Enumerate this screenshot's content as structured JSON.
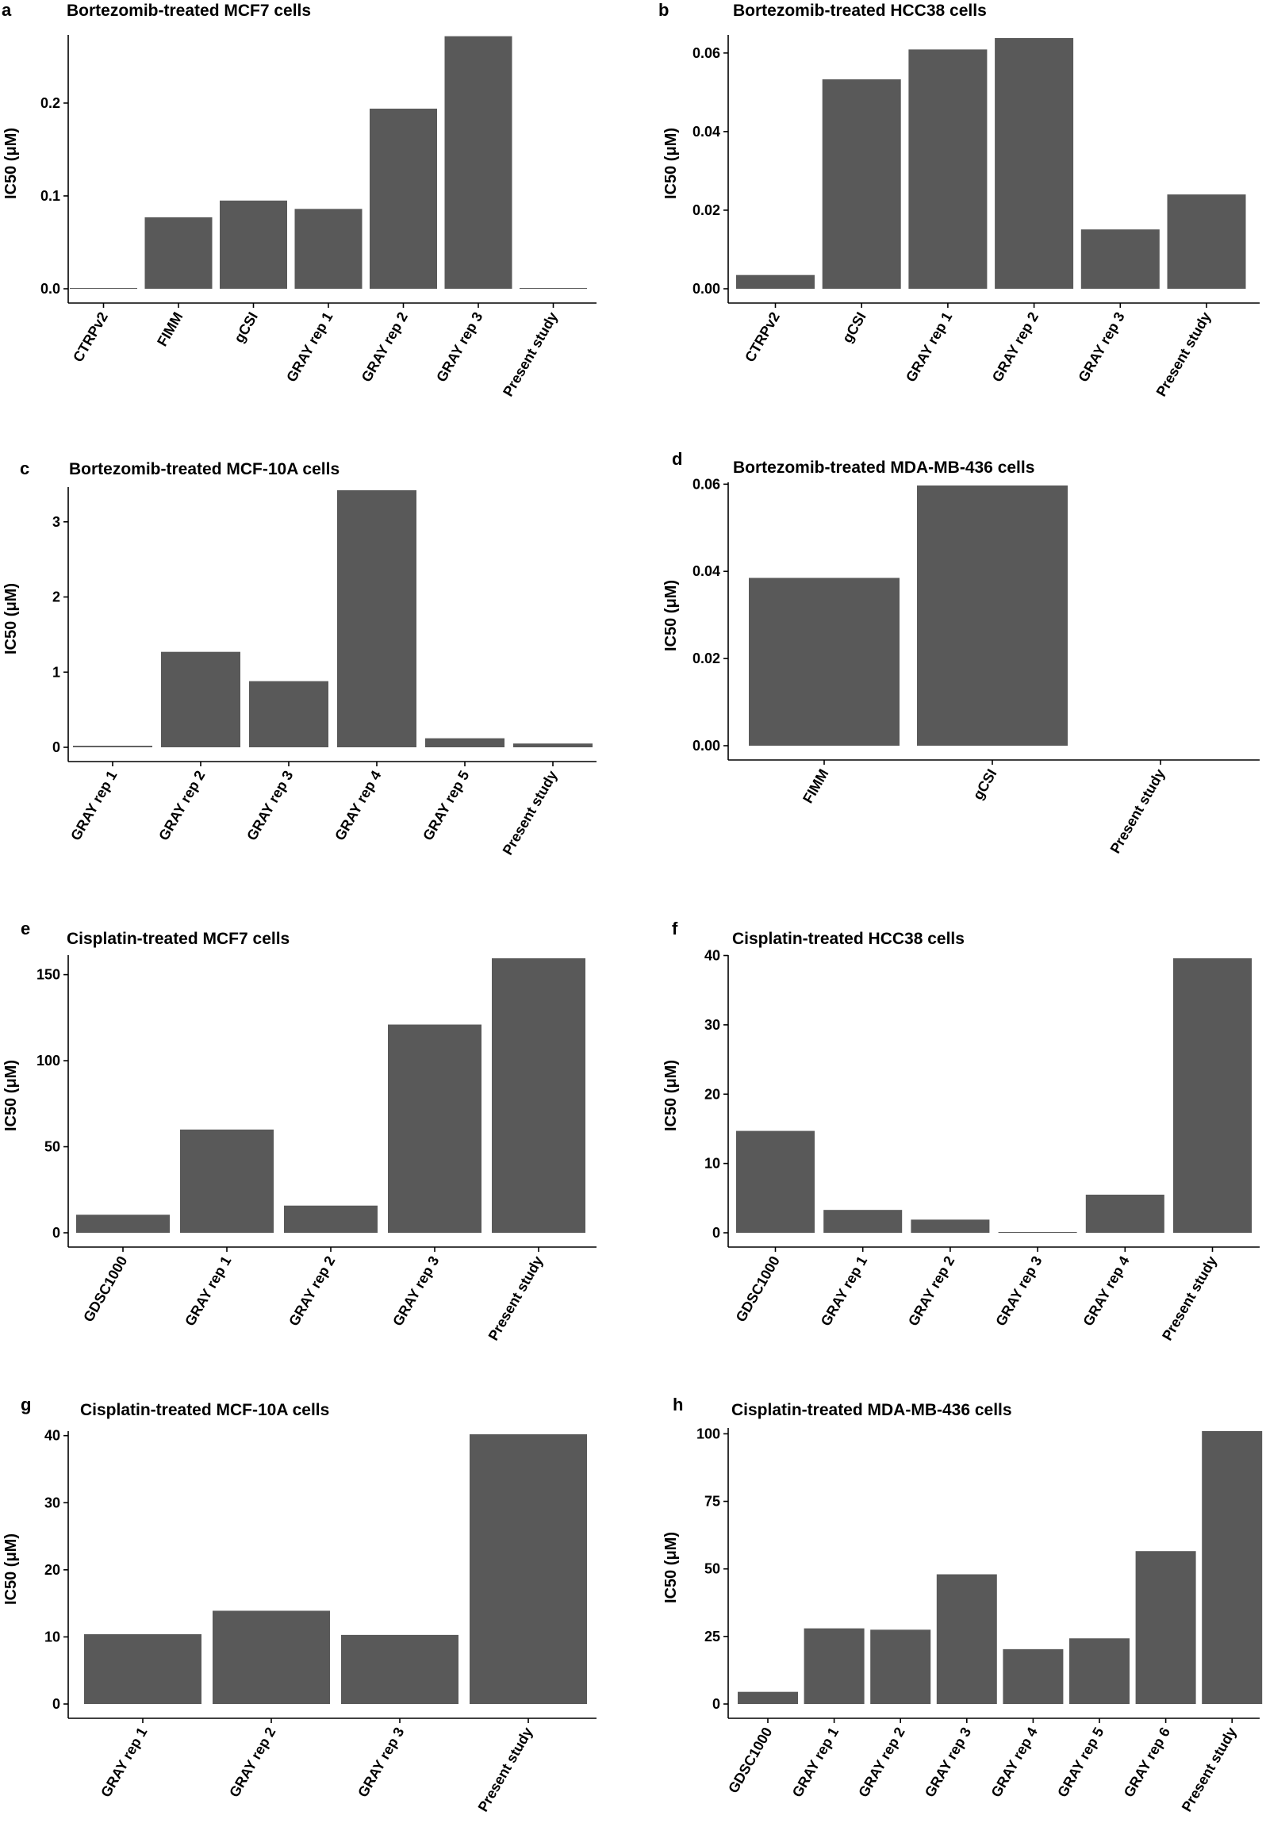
{
  "figure": {
    "ylabel": "IC50 (μM)"
  },
  "chart_data": [
    {
      "letter": "a",
      "type": "bar",
      "title": "Bortezomib-treated MCF7 cells",
      "xlabel": "",
      "ylabel": "IC50 (μM)",
      "categories": [
        "CTRPv2",
        "FIMM",
        "gCSI",
        "GRAY rep 1",
        "GRAY rep 2",
        "GRAY rep 3",
        "Present study"
      ],
      "values": [
        0.0003,
        0.077,
        0.095,
        0.086,
        0.194,
        0.272,
        0.0003
      ],
      "ylim": [
        0,
        0.27
      ],
      "ticks": [
        0.0,
        0.1,
        0.2
      ],
      "tick_labels": [
        "0.0",
        "0.1",
        "0.2"
      ]
    },
    {
      "letter": "b",
      "type": "bar",
      "title": "Bortezomib-treated HCC38 cells",
      "xlabel": "",
      "ylabel": "IC50 (μM)",
      "categories": [
        "CTRPv2",
        "gCSI",
        "GRAY rep 1",
        "GRAY rep 2",
        "GRAY rep 3",
        "Present study"
      ],
      "values": [
        0.0035,
        0.0533,
        0.0609,
        0.0638,
        0.0151,
        0.024
      ],
      "ylim": [
        0,
        0.0638
      ],
      "ticks": [
        0.0,
        0.02,
        0.04,
        0.06
      ],
      "tick_labels": [
        "0.00",
        "0.02",
        "0.04",
        "0.06"
      ]
    },
    {
      "letter": "c",
      "type": "bar",
      "title": "Bortezomib-treated MCF-10A cells",
      "xlabel": "",
      "ylabel": "IC50 (μM)",
      "categories": [
        "GRAY rep 1",
        "GRAY rep 2",
        "GRAY rep 3",
        "GRAY rep 4",
        "GRAY rep 5",
        "Present study"
      ],
      "values": [
        0.02,
        1.27,
        0.88,
        3.42,
        0.12,
        0.05
      ],
      "ylim": [
        0,
        3.42
      ],
      "ticks": [
        0,
        1,
        2,
        3
      ],
      "tick_labels": [
        "0",
        "1",
        "2",
        "3"
      ]
    },
    {
      "letter": "d",
      "type": "bar",
      "title": "Bortezomib-treated MDA-MB-436 cells",
      "xlabel": "",
      "ylabel": "IC50 (μM)",
      "categories": [
        "FIMM",
        "gCSI",
        "Present study"
      ],
      "values": [
        0.0385,
        0.0597,
        0
      ],
      "ylim": [
        0,
        0.0597
      ],
      "ticks": [
        0.0,
        0.02,
        0.04,
        0.06
      ],
      "tick_labels": [
        "0.00",
        "0.02",
        "0.04",
        "0.06"
      ]
    },
    {
      "letter": "e",
      "type": "bar",
      "title": "Cisplatin-treated MCF7 cells",
      "xlabel": "",
      "ylabel": "IC50 (μM)",
      "categories": [
        "GDSC1000",
        "GRAY rep 1",
        "GRAY rep 2",
        "GRAY rep 3",
        "Present study"
      ],
      "values": [
        10.5,
        60,
        15.8,
        121,
        159.5
      ],
      "ylim": [
        0,
        159.5
      ],
      "ticks": [
        0,
        50,
        100,
        150
      ],
      "tick_labels": [
        "0",
        "50",
        "100",
        "150"
      ]
    },
    {
      "letter": "f",
      "type": "bar",
      "title": "Cisplatin-treated HCC38 cells",
      "xlabel": "",
      "ylabel": "IC50 (μM)",
      "categories": [
        "GDSC1000",
        "GRAY rep 1",
        "GRAY rep 2",
        "GRAY rep 3",
        "GRAY rep 4",
        "Present study"
      ],
      "values": [
        14.7,
        3.3,
        1.9,
        0.05,
        5.5,
        39.6
      ],
      "ylim": [
        0,
        39.6
      ],
      "ticks": [
        0,
        10,
        20,
        30,
        40
      ],
      "tick_labels": [
        "0",
        "10",
        "20",
        "30",
        "40"
      ]
    },
    {
      "letter": "g",
      "type": "bar",
      "title": "Cisplatin-treated MCF-10A cells",
      "xlabel": "",
      "ylabel": "IC50 (μM)",
      "categories": [
        "GRAY rep 1",
        "GRAY rep 2",
        "GRAY rep 3",
        "Present study"
      ],
      "values": [
        10.4,
        13.9,
        10.3,
        40.2
      ],
      "ylim": [
        0,
        40.2
      ],
      "ticks": [
        0,
        10,
        20,
        30,
        40
      ],
      "tick_labels": [
        "0",
        "10",
        "20",
        "30",
        "40"
      ]
    },
    {
      "letter": "h",
      "type": "bar",
      "title": "Cisplatin-treated MDA-MB-436 cells",
      "xlabel": "",
      "ylabel": "IC50 (μM)",
      "categories": [
        "GDSC1000",
        "GRAY rep 1",
        "GRAY rep 2",
        "GRAY rep 3",
        "GRAY rep 4",
        "GRAY rep 5",
        "GRAY rep 6",
        "Present study"
      ],
      "values": [
        4.5,
        28,
        27.5,
        48,
        20.3,
        24.3,
        56.6,
        101
      ],
      "ylim": [
        0,
        101
      ],
      "ticks": [
        0,
        25,
        50,
        75,
        100
      ],
      "tick_labels": [
        "0",
        "25",
        "50",
        "75",
        "100"
      ]
    }
  ]
}
